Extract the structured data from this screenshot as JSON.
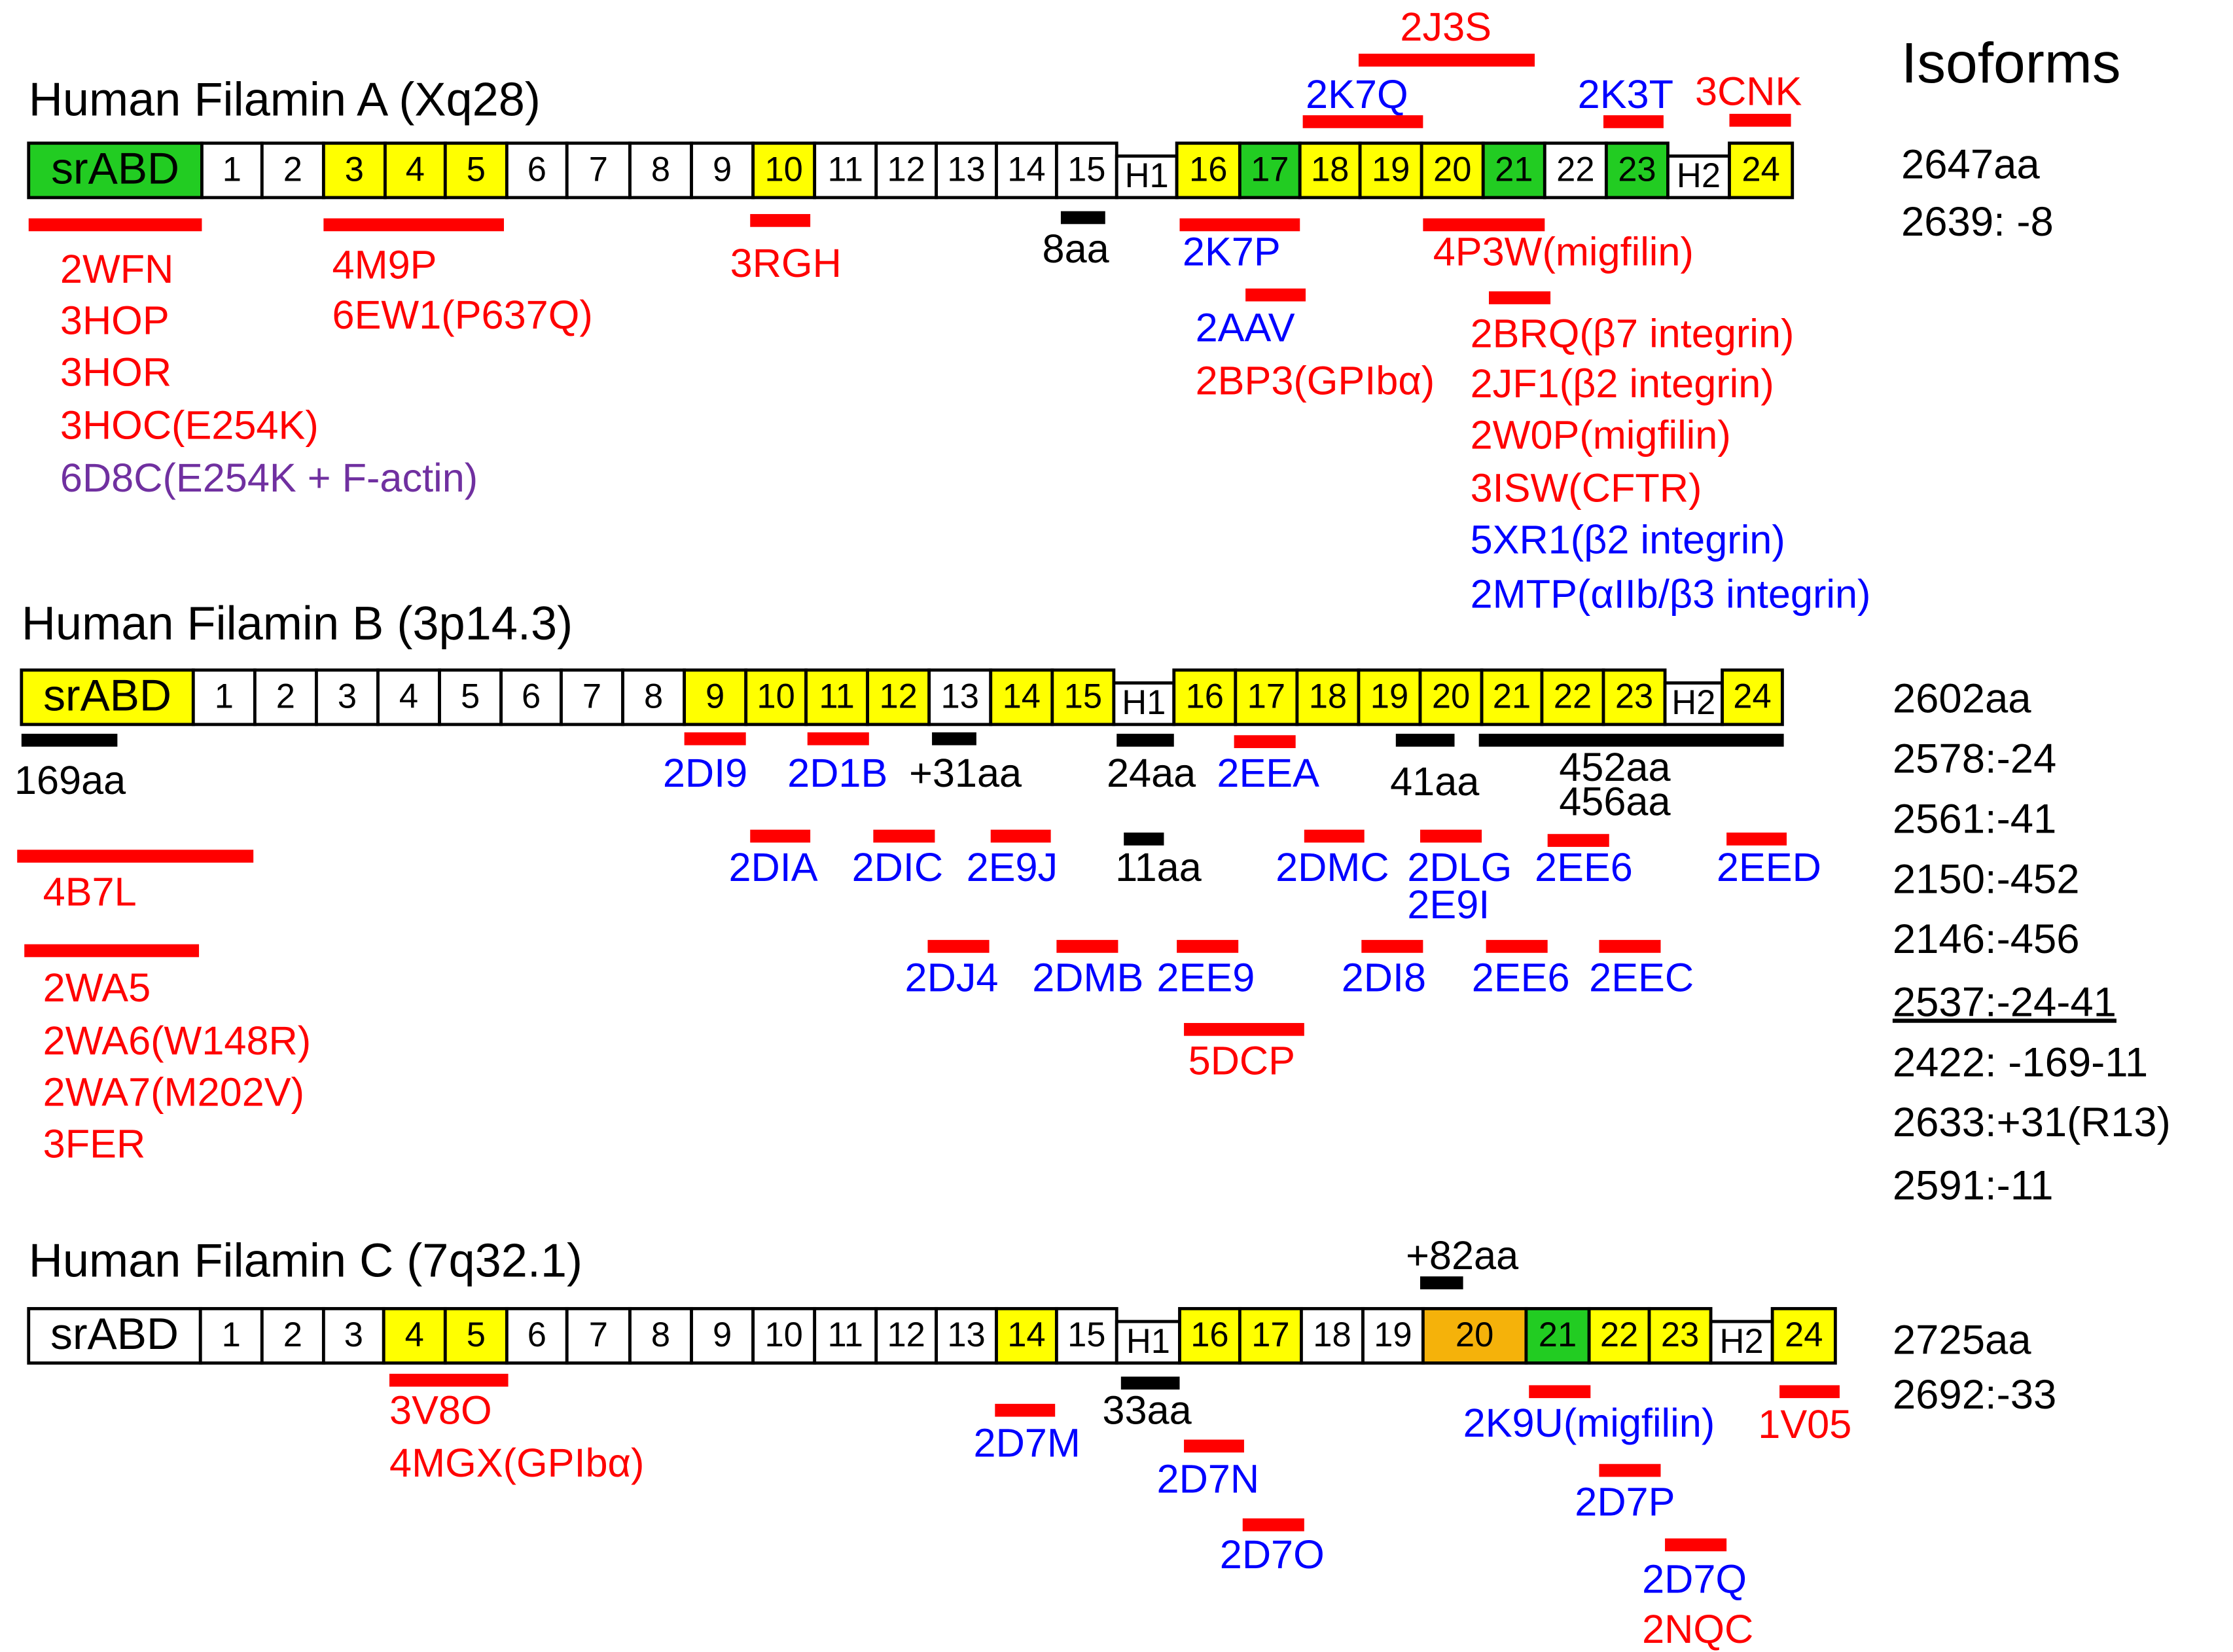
{
  "colors": {
    "green": "#22cc22",
    "yellow": "#ffff00",
    "orange": "#f5b20a",
    "white": "#ffffff",
    "red": "#ff0000",
    "blue": "#0000ff",
    "purple": "#7030a0",
    "black": "#000000"
  },
  "isoforms_heading": "Isoforms",
  "filaminA": {
    "title": "Human Filamin A (Xq28)",
    "domains": [
      {
        "label": "srABD",
        "fill": "green"
      },
      {
        "label": "1",
        "fill": "white"
      },
      {
        "label": "2",
        "fill": "white"
      },
      {
        "label": "3",
        "fill": "yellow"
      },
      {
        "label": "4",
        "fill": "yellow"
      },
      {
        "label": "5",
        "fill": "yellow"
      },
      {
        "label": "6",
        "fill": "white"
      },
      {
        "label": "7",
        "fill": "white"
      },
      {
        "label": "8",
        "fill": "white"
      },
      {
        "label": "9",
        "fill": "white"
      },
      {
        "label": "10",
        "fill": "yellow"
      },
      {
        "label": "11",
        "fill": "white"
      },
      {
        "label": "12",
        "fill": "white"
      },
      {
        "label": "13",
        "fill": "white"
      },
      {
        "label": "14",
        "fill": "white"
      },
      {
        "label": "15",
        "fill": "white"
      },
      {
        "label": "H1",
        "fill": "hinge"
      },
      {
        "label": "16",
        "fill": "yellow"
      },
      {
        "label": "17",
        "fill": "green"
      },
      {
        "label": "18",
        "fill": "yellow"
      },
      {
        "label": "19",
        "fill": "yellow"
      },
      {
        "label": "20",
        "fill": "yellow"
      },
      {
        "label": "21",
        "fill": "green"
      },
      {
        "label": "22",
        "fill": "white"
      },
      {
        "label": "23",
        "fill": "green"
      },
      {
        "label": "H2",
        "fill": "hinge"
      },
      {
        "label": "24",
        "fill": "yellow"
      }
    ],
    "annotations": [
      {
        "text": "2WFN",
        "color": "red"
      },
      {
        "text": "3HOP",
        "color": "red"
      },
      {
        "text": "3HOR",
        "color": "red"
      },
      {
        "text": "3HOC(E254K)",
        "color": "red"
      },
      {
        "text": "6D8C(E254K + F-actin)",
        "color": "purple"
      },
      {
        "text": "4M9P",
        "color": "red"
      },
      {
        "text": "6EW1(P637Q)",
        "color": "red"
      },
      {
        "text": "3RGH",
        "color": "red"
      },
      {
        "text": "8aa",
        "color": "black"
      },
      {
        "text": "2K7P",
        "color": "blue"
      },
      {
        "text": "2AAV",
        "color": "blue"
      },
      {
        "text": "2BP3(GPIbα)",
        "color": "red"
      },
      {
        "text": "4P3W(migfilin)",
        "color": "red"
      },
      {
        "text": "2BRQ(β7 integrin)",
        "color": "red"
      },
      {
        "text": "2JF1(β2 integrin)",
        "color": "red"
      },
      {
        "text": "2W0P(migfilin)",
        "color": "red"
      },
      {
        "text": "3ISW(CFTR)",
        "color": "red"
      },
      {
        "text": "5XR1(β2 integrin)",
        "color": "blue"
      },
      {
        "text": "2MTP(αIIb/β3 integrin)",
        "color": "blue"
      },
      {
        "text": "2J3S",
        "color": "red"
      },
      {
        "text": "2K7Q",
        "color": "blue"
      },
      {
        "text": "2K3T",
        "color": "blue"
      },
      {
        "text": "3CNK",
        "color": "red"
      }
    ],
    "isoforms": [
      "2647aa",
      "2639: -8"
    ]
  },
  "filaminB": {
    "title": "Human Filamin B (3p14.3)",
    "domains": [
      {
        "label": "srABD",
        "fill": "yellow"
      },
      {
        "label": "1",
        "fill": "white"
      },
      {
        "label": "2",
        "fill": "white"
      },
      {
        "label": "3",
        "fill": "white"
      },
      {
        "label": "4",
        "fill": "white"
      },
      {
        "label": "5",
        "fill": "white"
      },
      {
        "label": "6",
        "fill": "white"
      },
      {
        "label": "7",
        "fill": "white"
      },
      {
        "label": "8",
        "fill": "white"
      },
      {
        "label": "9",
        "fill": "yellow"
      },
      {
        "label": "10",
        "fill": "yellow"
      },
      {
        "label": "11",
        "fill": "yellow"
      },
      {
        "label": "12",
        "fill": "yellow"
      },
      {
        "label": "13",
        "fill": "white"
      },
      {
        "label": "14",
        "fill": "yellow"
      },
      {
        "label": "15",
        "fill": "yellow"
      },
      {
        "label": "H1",
        "fill": "hinge"
      },
      {
        "label": "16",
        "fill": "yellow"
      },
      {
        "label": "17",
        "fill": "yellow"
      },
      {
        "label": "18",
        "fill": "yellow"
      },
      {
        "label": "19",
        "fill": "yellow"
      },
      {
        "label": "20",
        "fill": "yellow"
      },
      {
        "label": "21",
        "fill": "yellow"
      },
      {
        "label": "22",
        "fill": "yellow"
      },
      {
        "label": "23",
        "fill": "yellow"
      },
      {
        "label": "H2",
        "fill": "hinge"
      },
      {
        "label": "24",
        "fill": "yellow"
      }
    ],
    "annotations": [
      {
        "text": "169aa",
        "color": "black"
      },
      {
        "text": "4B7L",
        "color": "red"
      },
      {
        "text": "2WA5",
        "color": "red"
      },
      {
        "text": "2WA6(W148R)",
        "color": "red"
      },
      {
        "text": "2WA7(M202V)",
        "color": "red"
      },
      {
        "text": "3FER",
        "color": "red"
      },
      {
        "text": "2DI9",
        "color": "blue"
      },
      {
        "text": "2D1B",
        "color": "blue"
      },
      {
        "text": "+31aa",
        "color": "black"
      },
      {
        "text": "24aa",
        "color": "black"
      },
      {
        "text": "2EEA",
        "color": "blue"
      },
      {
        "text": "41aa",
        "color": "black"
      },
      {
        "text": "452aa",
        "color": "black"
      },
      {
        "text": "456aa",
        "color": "black"
      },
      {
        "text": "2DIA",
        "color": "blue"
      },
      {
        "text": "2DIC",
        "color": "blue"
      },
      {
        "text": "2E9J",
        "color": "blue"
      },
      {
        "text": "11aa",
        "color": "black"
      },
      {
        "text": "2DMC",
        "color": "blue"
      },
      {
        "text": "2DLG",
        "color": "blue"
      },
      {
        "text": "2E9I",
        "color": "blue"
      },
      {
        "text": "2EE6",
        "color": "blue"
      },
      {
        "text": "2EED",
        "color": "blue"
      },
      {
        "text": "2DJ4",
        "color": "blue"
      },
      {
        "text": "2DMB",
        "color": "blue"
      },
      {
        "text": "2EE9",
        "color": "blue"
      },
      {
        "text": "2DI8",
        "color": "blue"
      },
      {
        "text": "2EE6",
        "color": "blue"
      },
      {
        "text": "2EEC",
        "color": "blue"
      },
      {
        "text": "5DCP",
        "color": "red"
      }
    ],
    "isoforms": [
      "2602aa",
      "2578:-24",
      "2561:-41",
      "2150:-452",
      "2146:-456",
      "2537:-24-41",
      "2422: -169-11",
      "2633:+31(R13)",
      "2591:-11"
    ]
  },
  "filaminC": {
    "title": "Human Filamin C (7q32.1)",
    "domains": [
      {
        "label": "srABD",
        "fill": "white"
      },
      {
        "label": "1",
        "fill": "white"
      },
      {
        "label": "2",
        "fill": "white"
      },
      {
        "label": "3",
        "fill": "white"
      },
      {
        "label": "4",
        "fill": "yellow"
      },
      {
        "label": "5",
        "fill": "yellow"
      },
      {
        "label": "6",
        "fill": "white"
      },
      {
        "label": "7",
        "fill": "white"
      },
      {
        "label": "8",
        "fill": "white"
      },
      {
        "label": "9",
        "fill": "white"
      },
      {
        "label": "10",
        "fill": "white"
      },
      {
        "label": "11",
        "fill": "white"
      },
      {
        "label": "12",
        "fill": "white"
      },
      {
        "label": "13",
        "fill": "white"
      },
      {
        "label": "14",
        "fill": "yellow"
      },
      {
        "label": "15",
        "fill": "white"
      },
      {
        "label": "H1",
        "fill": "hinge"
      },
      {
        "label": "16",
        "fill": "yellow"
      },
      {
        "label": "17",
        "fill": "yellow"
      },
      {
        "label": "18",
        "fill": "white"
      },
      {
        "label": "19",
        "fill": "white"
      },
      {
        "label": "20",
        "fill": "orange"
      },
      {
        "label": "21",
        "fill": "green"
      },
      {
        "label": "22",
        "fill": "yellow"
      },
      {
        "label": "23",
        "fill": "yellow"
      },
      {
        "label": "H2",
        "fill": "hinge"
      },
      {
        "label": "24",
        "fill": "yellow"
      }
    ],
    "annotations": [
      {
        "text": "+82aa",
        "color": "black"
      },
      {
        "text": "3V8O",
        "color": "red"
      },
      {
        "text": "4MGX(GPIbα)",
        "color": "red"
      },
      {
        "text": "2D7M",
        "color": "blue"
      },
      {
        "text": "33aa",
        "color": "black"
      },
      {
        "text": "2D7N",
        "color": "blue"
      },
      {
        "text": "2D7O",
        "color": "blue"
      },
      {
        "text": "2K9U(migfilin)",
        "color": "blue"
      },
      {
        "text": "1V05",
        "color": "red"
      },
      {
        "text": "2D7P",
        "color": "blue"
      },
      {
        "text": "2D7Q",
        "color": "blue"
      },
      {
        "text": "2NQC",
        "color": "red"
      }
    ],
    "isoforms": [
      "2725aa",
      "2692:-33"
    ]
  }
}
